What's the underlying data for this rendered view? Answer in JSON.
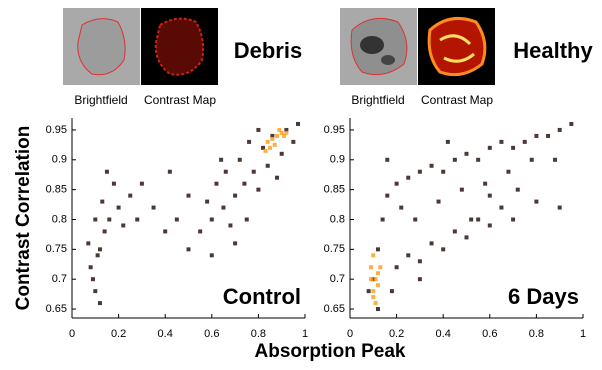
{
  "figure": {
    "images": [
      {
        "labels": [
          "Brightfield",
          "Contrast Map"
        ],
        "class": "Debris",
        "color": "#1a1acc"
      },
      {
        "labels": [
          "Brightfield",
          "Contrast Map"
        ],
        "class": "Healthy",
        "color": "#e01010"
      }
    ],
    "x_label": "Absorption Peak",
    "y_label": "Contrast Correlation"
  },
  "chart_data": [
    {
      "type": "scatter",
      "annotation": "Control",
      "xlim": [
        0,
        1
      ],
      "xticks": [
        0,
        0.2,
        0.4,
        0.6,
        0.8,
        1
      ],
      "ylim": [
        0.635,
        0.97
      ],
      "yticks": [
        0.65,
        0.7,
        0.75,
        0.8,
        0.85,
        0.9,
        0.95
      ],
      "series": [
        {
          "color": "#2e1510",
          "x": [
            0.08,
            0.1,
            0.12,
            0.1,
            0.14,
            0.09,
            0.13,
            0.16,
            0.18,
            0.2,
            0.11,
            0.15,
            0.22,
            0.25,
            0.3,
            0.28,
            0.35,
            0.4,
            0.45,
            0.5,
            0.55,
            0.58,
            0.6,
            0.62,
            0.65,
            0.66,
            0.68,
            0.7,
            0.72,
            0.74,
            0.75,
            0.78,
            0.8,
            0.82,
            0.76,
            0.84,
            0.86,
            0.9,
            0.92,
            0.95,
            0.88,
            0.7,
            0.6,
            0.42,
            0.12,
            0.07,
            0.5,
            0.64,
            0.8,
            0.97
          ],
          "y": [
            0.72,
            0.68,
            0.75,
            0.8,
            0.78,
            0.7,
            0.83,
            0.8,
            0.86,
            0.82,
            0.74,
            0.88,
            0.79,
            0.84,
            0.86,
            0.8,
            0.82,
            0.78,
            0.8,
            0.84,
            0.78,
            0.83,
            0.8,
            0.86,
            0.82,
            0.88,
            0.79,
            0.84,
            0.9,
            0.86,
            0.8,
            0.88,
            0.85,
            0.92,
            0.93,
            0.89,
            0.94,
            0.91,
            0.95,
            0.93,
            0.87,
            0.76,
            0.74,
            0.88,
            0.66,
            0.76,
            0.75,
            0.9,
            0.95,
            0.96
          ]
        },
        {
          "color": "#ffa020",
          "x": [
            0.84,
            0.86,
            0.88,
            0.9,
            0.87,
            0.91,
            0.85,
            0.89,
            0.92,
            0.83
          ],
          "y": [
            0.93,
            0.935,
            0.94,
            0.945,
            0.925,
            0.94,
            0.92,
            0.95,
            0.945,
            0.915
          ]
        }
      ]
    },
    {
      "type": "scatter",
      "annotation": "6 Days",
      "xlim": [
        0,
        1
      ],
      "xticks": [
        0,
        0.2,
        0.4,
        0.6,
        0.8,
        1
      ],
      "ylim": [
        0.635,
        0.97
      ],
      "yticks": [
        0.65,
        0.7,
        0.75,
        0.8,
        0.85,
        0.9,
        0.95
      ],
      "series": [
        {
          "color": "#2e1510",
          "x": [
            0.1,
            0.12,
            0.14,
            0.16,
            0.2,
            0.25,
            0.3,
            0.35,
            0.4,
            0.45,
            0.5,
            0.55,
            0.6,
            0.65,
            0.7,
            0.75,
            0.8,
            0.85,
            0.9,
            0.95,
            0.2,
            0.25,
            0.3,
            0.35,
            0.4,
            0.45,
            0.5,
            0.55,
            0.6,
            0.65,
            0.7,
            0.8,
            0.9,
            0.18,
            0.22,
            0.28,
            0.38,
            0.48,
            0.58,
            0.68,
            0.78,
            0.12,
            0.08,
            0.16,
            0.3,
            0.6,
            0.88,
            0.42,
            0.72,
            0.52
          ],
          "y": [
            0.7,
            0.75,
            0.8,
            0.84,
            0.86,
            0.87,
            0.88,
            0.89,
            0.88,
            0.9,
            0.91,
            0.9,
            0.92,
            0.93,
            0.92,
            0.93,
            0.94,
            0.94,
            0.95,
            0.96,
            0.72,
            0.74,
            0.73,
            0.76,
            0.75,
            0.78,
            0.77,
            0.8,
            0.79,
            0.82,
            0.8,
            0.83,
            0.82,
            0.68,
            0.82,
            0.8,
            0.83,
            0.85,
            0.86,
            0.88,
            0.9,
            0.65,
            0.68,
            0.9,
            0.7,
            0.84,
            0.9,
            0.93,
            0.85,
            0.8
          ]
        },
        {
          "color": "#ffa020",
          "x": [
            0.1,
            0.11,
            0.09,
            0.12,
            0.1,
            0.11,
            0.13,
            0.09,
            0.12,
            0.1
          ],
          "y": [
            0.68,
            0.7,
            0.72,
            0.69,
            0.74,
            0.66,
            0.72,
            0.7,
            0.71,
            0.67
          ]
        }
      ]
    }
  ]
}
